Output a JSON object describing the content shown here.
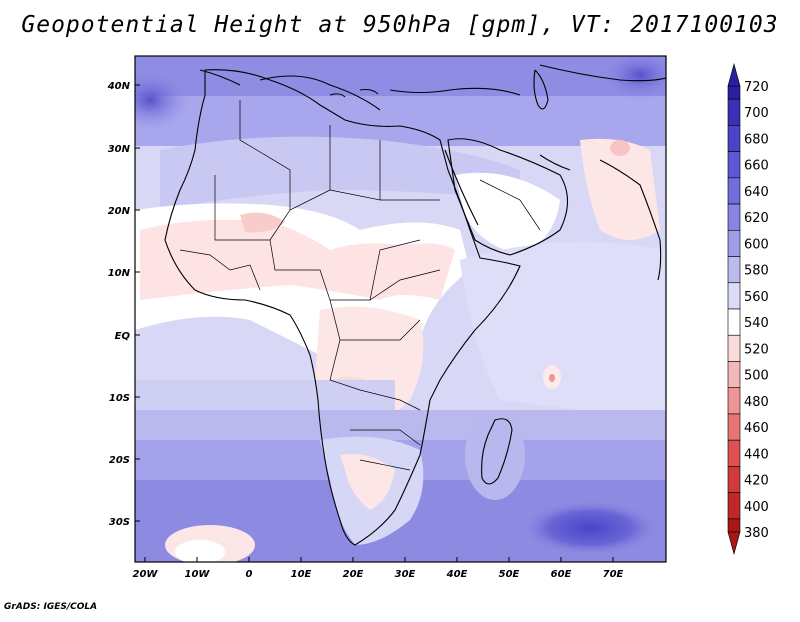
{
  "title": "Geopotential Height at 950hPa [gpm], VT: 2017100103",
  "footer": "GrADS: IGES/COLA",
  "map": {
    "lat_labels": [
      "40N",
      "30N",
      "20N",
      "10N",
      "EQ",
      "10S",
      "20S",
      "30S"
    ],
    "lon_labels": [
      "20W",
      "10W",
      "0",
      "10E",
      "20E",
      "30E",
      "40E",
      "50E",
      "60E",
      "70E"
    ]
  },
  "colorbar": {
    "levels": [
      "720",
      "700",
      "680",
      "660",
      "640",
      "620",
      "600",
      "580",
      "560",
      "540",
      "520",
      "500",
      "480",
      "460",
      "440",
      "420",
      "400",
      "380"
    ],
    "colors": [
      "#2a1fa0",
      "#3a30b8",
      "#4b44c8",
      "#5e58d4",
      "#716ddc",
      "#8885e4",
      "#a09ee8",
      "#bcbbf0",
      "#dcdcf8",
      "#ffffff",
      "#fbdcdc",
      "#f5b8b8",
      "#ee9494",
      "#e67474",
      "#dc5252",
      "#d03a3a",
      "#c02828",
      "#a81818"
    ]
  },
  "styles": {
    "land_low": "#fde6e6",
    "ocean_mid": "#d6d6f6",
    "ocean_deep": "#7b78de",
    "border": "#000000"
  }
}
